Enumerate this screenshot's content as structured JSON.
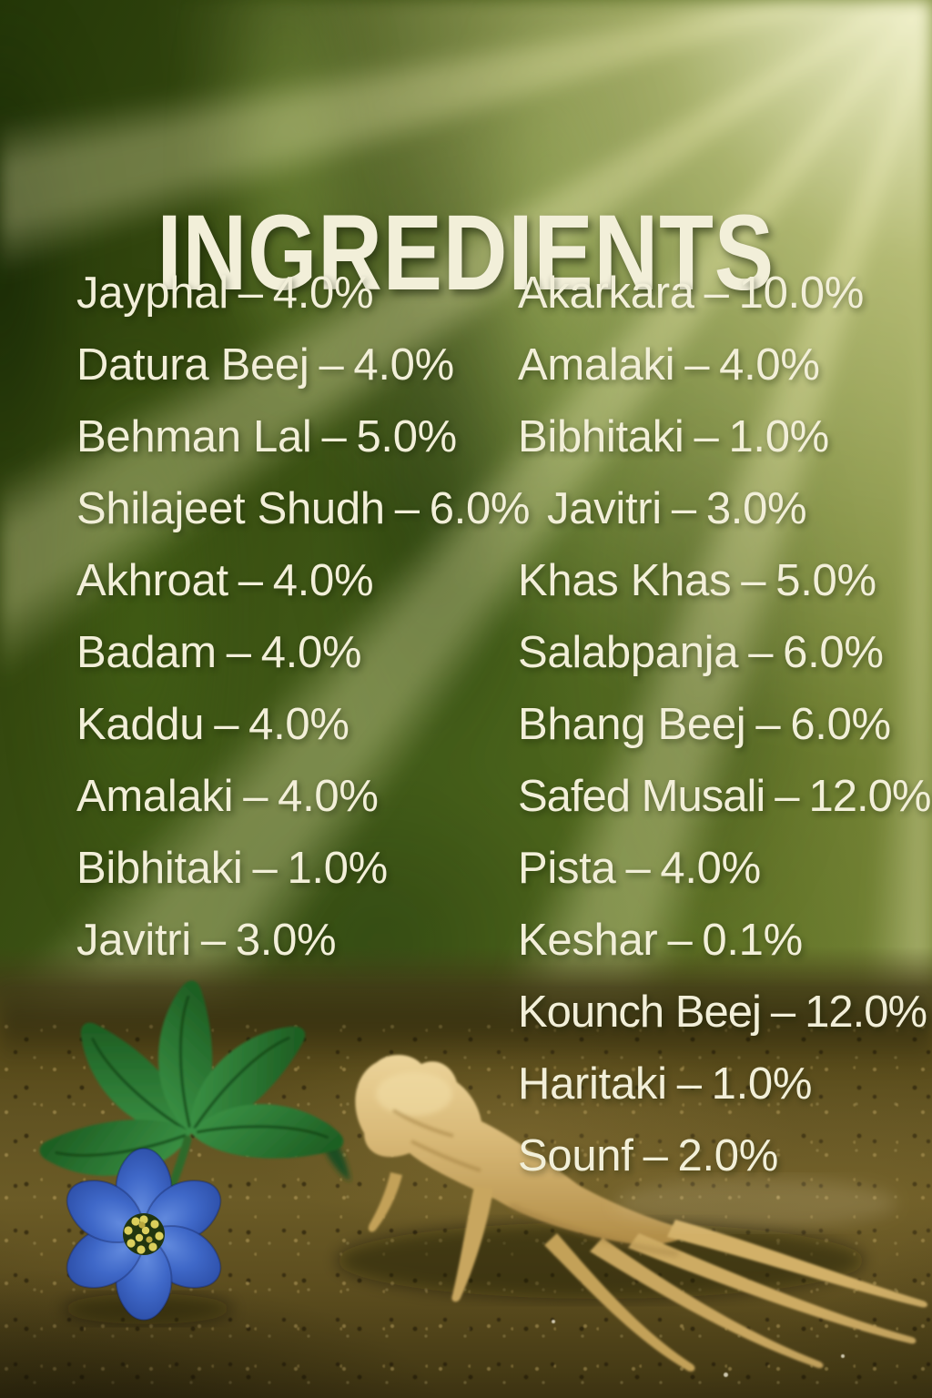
{
  "title": "INGREDIENTS",
  "ingredients": {
    "separator": "–",
    "left": [
      {
        "name": "Jayphal",
        "percent": "4.0%"
      },
      {
        "name": "Datura Beej",
        "percent": "4.0%"
      },
      {
        "name": "Behman Lal",
        "percent": "5.0%"
      },
      {
        "name": "Shilajeet Shudh",
        "percent": "6.0%"
      },
      {
        "name": "Akhroat",
        "percent": "4.0%"
      },
      {
        "name": "Badam",
        "percent": "4.0%"
      },
      {
        "name": "Kaddu",
        "percent": "4.0%"
      },
      {
        "name": "Amalaki",
        "percent": "4.0%"
      },
      {
        "name": "Bibhitaki",
        "percent": "1.0%"
      },
      {
        "name": "Javitri",
        "percent": "3.0%"
      }
    ],
    "right": [
      {
        "name": "Akarkara",
        "percent": "10.0%"
      },
      {
        "name": "Amalaki",
        "percent": "4.0%"
      },
      {
        "name": "Bibhitaki",
        "percent": "1.0%"
      },
      {
        "name": "Javitri",
        "percent": "3.0%"
      },
      {
        "name": "Khas Khas",
        "percent": "5.0%"
      },
      {
        "name": "Salabpanja",
        "percent": "6.0%"
      },
      {
        "name": "Bhang Beej",
        "percent": "6.0%"
      },
      {
        "name": "Safed Musali",
        "percent": "12.0%"
      },
      {
        "name": "Pista",
        "percent": "4.0%"
      },
      {
        "name": "Keshar",
        "percent": "0.1%"
      },
      {
        "name": "Kounch Beej",
        "percent": "12.0%"
      },
      {
        "name": "Haritaki",
        "percent": "1.0%"
      },
      {
        "name": "Sounf",
        "percent": "2.0%"
      }
    ]
  },
  "colors": {
    "text_cream": "#F2EFD9",
    "background_green": "#4C661A",
    "background_green_dark": "#2A3E0C",
    "ray_gold": "#E8DFA0",
    "soil_brown": "#63521F",
    "soil_brown_dark": "#3E3413",
    "flower_blue": "#3A63C2",
    "flower_center_yellow": "#D8CB55",
    "leaf_green": "#2F7D33",
    "root_tan": "#D9BA78"
  }
}
